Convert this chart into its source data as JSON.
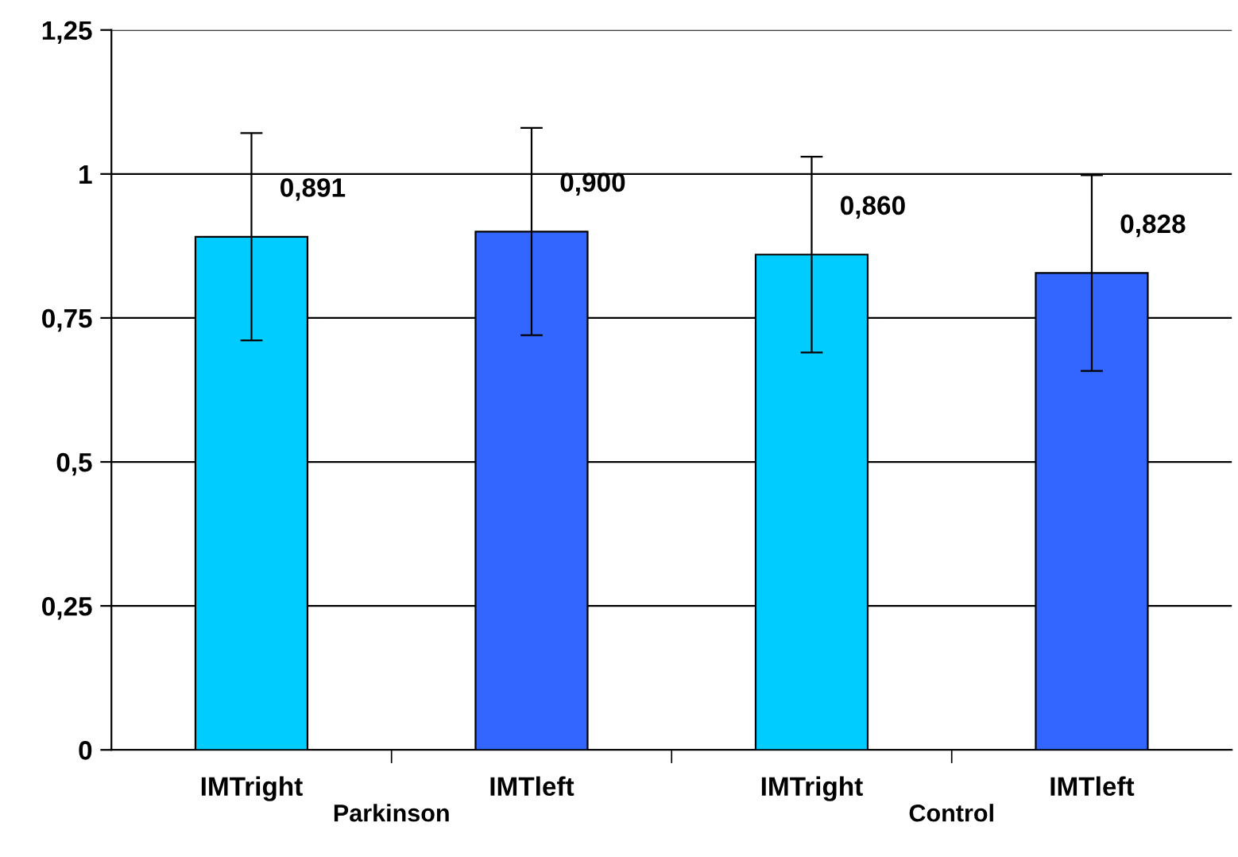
{
  "chart_data": {
    "type": "bar",
    "categories": [
      "IMTright",
      "IMTleft",
      "IMTright",
      "IMTleft"
    ],
    "values": [
      0.891,
      0.9,
      0.86,
      0.828
    ],
    "colors": [
      "#00ccff",
      "#3366ff",
      "#00ccff",
      "#3366ff"
    ],
    "errors": [
      0.18,
      0.18,
      0.17,
      0.17
    ],
    "value_labels": [
      "0,891",
      "0,900",
      "0,860",
      "0,828"
    ],
    "ylim": [
      0,
      1.25
    ],
    "yticks": [
      0,
      {
        "value": 0.25,
        "label": "0,25"
      },
      {
        "value": 0.5,
        "label": "0,5"
      },
      {
        "value": 0.75,
        "label": "0,75"
      },
      1,
      {
        "value": 1.25,
        "label": "1,25"
      }
    ],
    "grid": "y",
    "legend": false,
    "annotations": [
      "Parkinson",
      "Control"
    ]
  }
}
